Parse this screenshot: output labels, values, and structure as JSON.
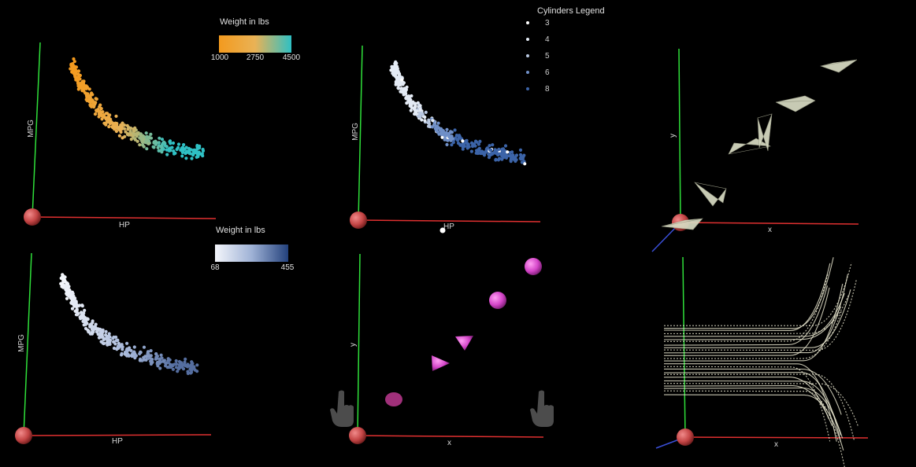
{
  "panels": {
    "p1": {
      "xlabel": "HP",
      "ylabel": "MPG"
    },
    "p2": {
      "xlabel": "HP",
      "ylabel": "MPG"
    },
    "p3": {
      "xlabel": "x",
      "ylabel": "y"
    },
    "p4": {
      "xlabel": "HP",
      "ylabel": "MPG"
    },
    "p5": {
      "xlabel": "x",
      "ylabel": "y"
    },
    "p6": {
      "xlabel": "x",
      "ylabel": ""
    }
  },
  "weight_legend_orange": {
    "title": "Weight in lbs",
    "min": "1000",
    "mid": "2750",
    "max": "4500",
    "colors": [
      "#f39a1e",
      "#e9b256",
      "#2fc0c4"
    ]
  },
  "weight_legend_blue": {
    "title": "Weight in lbs",
    "min": "68",
    "max": "455",
    "colors": [
      "#f4f6fb",
      "#9fb2d6",
      "#23417c"
    ]
  },
  "cylinders_legend": {
    "title": "Cylinders Legend",
    "items": [
      {
        "label": "3",
        "color": "#ffffff"
      },
      {
        "label": "4",
        "color": "#e4ebf5"
      },
      {
        "label": "5",
        "color": "#b8c7e0"
      },
      {
        "label": "6",
        "color": "#6f8fc7"
      },
      {
        "label": "8",
        "color": "#3c64a8"
      }
    ]
  },
  "colors": {
    "x_axis": "#e03030",
    "y_axis": "#2fe03a",
    "z_axis": "#3a4fd8",
    "origin_ball": "#c44545",
    "cone_pink": "#d445c8",
    "paper_plane": "#d8dcc4",
    "streamline": "#e6e4cc"
  },
  "chart_data": [
    {
      "type": "scatter",
      "title": "",
      "xlabel": "HP",
      "ylabel": "MPG",
      "color_by": "Weight in lbs",
      "color_range": [
        1000,
        4500
      ],
      "note_points": "approx. 390 points in the original; hyperbolic HP-vs-MPG cloud"
    },
    {
      "type": "scatter",
      "title": "",
      "xlabel": "HP",
      "ylabel": "MPG",
      "color_by": "Cylinders",
      "categories": [
        "3",
        "4",
        "5",
        "6",
        "8"
      ]
    },
    {
      "type": "scatter",
      "title": "",
      "xlabel": "x",
      "ylabel": "y",
      "glyph": "paper plane"
    },
    {
      "type": "scatter",
      "title": "",
      "xlabel": "HP",
      "ylabel": "MPG",
      "color_by": "Weight in lbs",
      "color_range": [
        68,
        455
      ]
    },
    {
      "type": "scatter",
      "title": "",
      "xlabel": "x",
      "ylabel": "y",
      "glyph": "cone / sphere"
    },
    {
      "type": "line",
      "title": "",
      "xlabel": "x",
      "ylabel": "",
      "style": "streamlines"
    }
  ]
}
